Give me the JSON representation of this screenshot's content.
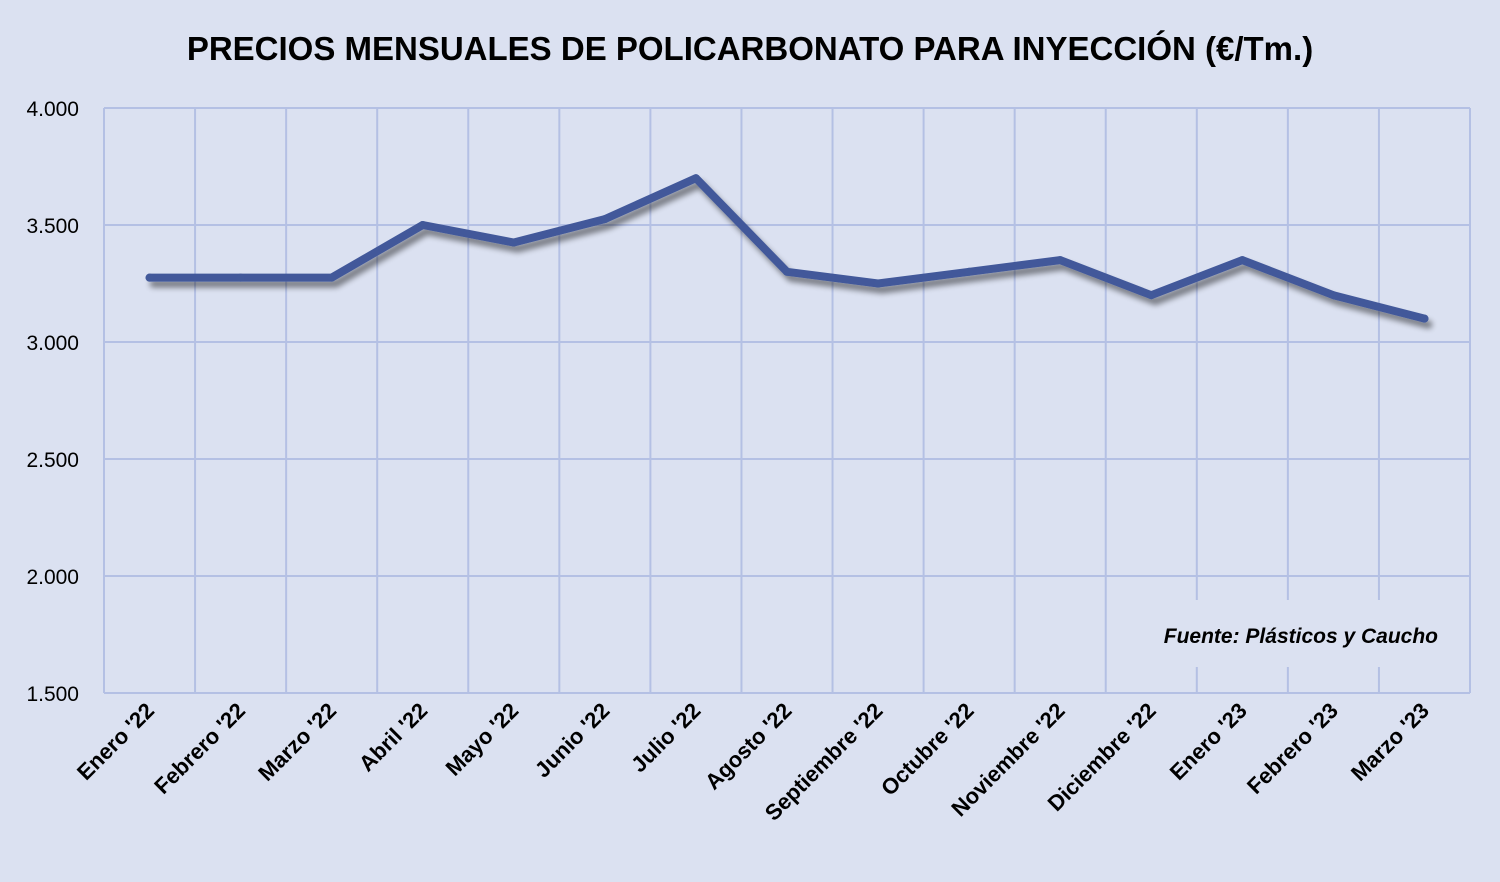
{
  "colors": {
    "background": "#dbe1f1",
    "grid": "#b4c0e4",
    "line": "#42599a",
    "source_box": "#dbe1f1"
  },
  "chart_data": {
    "type": "line",
    "title": "PRECIOS MENSUALES DE POLICARBONATO PARA INYECCIÓN (€/Tm.)",
    "xlabel": "",
    "ylabel": "",
    "categories": [
      "Enero '22",
      "Febrero '22",
      "Marzo '22",
      "Abril '22",
      "Mayo '22",
      "Junio '22",
      "Julio '22",
      "Agosto '22",
      "Septiembre '22",
      "Octubre '22",
      "Noviembre '22",
      "Diciembre '22",
      "Enero '23",
      "Febrero '23",
      "Marzo '23"
    ],
    "series": [
      {
        "values": [
          3275,
          3275,
          3275,
          3500,
          3425,
          3525,
          3700,
          3300,
          3250,
          3300,
          3350,
          3200,
          3350,
          3200,
          3100
        ]
      }
    ],
    "ylim": [
      1500,
      4000
    ],
    "yticks": [
      1500,
      2000,
      2500,
      3000,
      3500,
      4000
    ],
    "ytick_labels": [
      "1.500",
      "2.000",
      "2.500",
      "3.000",
      "3.500",
      "4.000"
    ],
    "grid": true,
    "legend": "none",
    "annotations": [
      "Fuente: Plásticos y Caucho"
    ]
  }
}
